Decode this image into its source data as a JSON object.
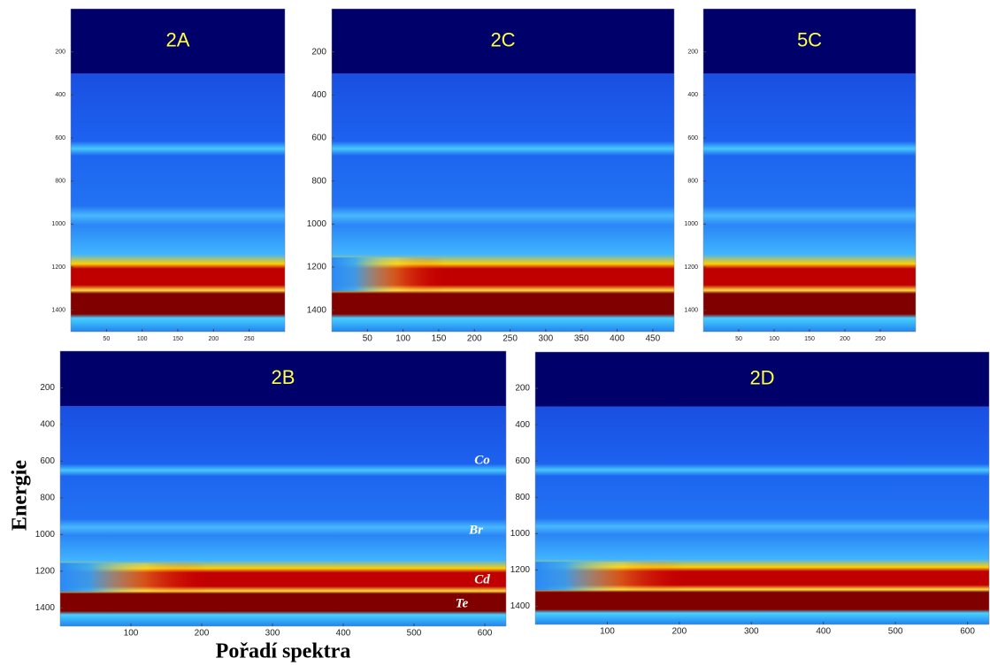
{
  "chart_data": [
    {
      "type": "heatmap",
      "title": "2A",
      "xlim": [
        0,
        300
      ],
      "ylim": [
        0,
        1500
      ],
      "xticks": [
        50,
        100,
        150,
        200,
        250
      ],
      "yticks": [
        200,
        400,
        600,
        800,
        1000,
        1200,
        1400
      ]
    },
    {
      "type": "heatmap",
      "title": "2C",
      "xlim": [
        0,
        480
      ],
      "ylim": [
        0,
        1500
      ],
      "xticks": [
        50,
        100,
        150,
        200,
        250,
        300,
        350,
        400,
        450
      ],
      "yticks": [
        200,
        400,
        600,
        800,
        1000,
        1200,
        1400
      ]
    },
    {
      "type": "heatmap",
      "title": "5C",
      "xlim": [
        0,
        300
      ],
      "ylim": [
        0,
        1500
      ],
      "xticks": [
        50,
        100,
        150,
        200,
        250
      ],
      "yticks": [
        200,
        400,
        600,
        800,
        1000,
        1200,
        1400
      ]
    },
    {
      "type": "heatmap",
      "title": "2B",
      "xlim": [
        0,
        630
      ],
      "ylim": [
        0,
        1500
      ],
      "xticks": [
        100,
        200,
        300,
        400,
        500,
        600
      ],
      "yticks": [
        200,
        400,
        600,
        800,
        1000,
        1200,
        1400
      ],
      "annotations": [
        "Co",
        "Br",
        "Cd",
        "Te"
      ]
    },
    {
      "type": "heatmap",
      "title": "2D",
      "xlim": [
        0,
        630
      ],
      "ylim": [
        0,
        1500
      ],
      "xticks": [
        100,
        200,
        300,
        400,
        500,
        600
      ],
      "yticks": [
        200,
        400,
        600,
        800,
        1000,
        1200,
        1400
      ]
    }
  ],
  "y_label": "Energie",
  "x_label": "Pořadí spektra"
}
